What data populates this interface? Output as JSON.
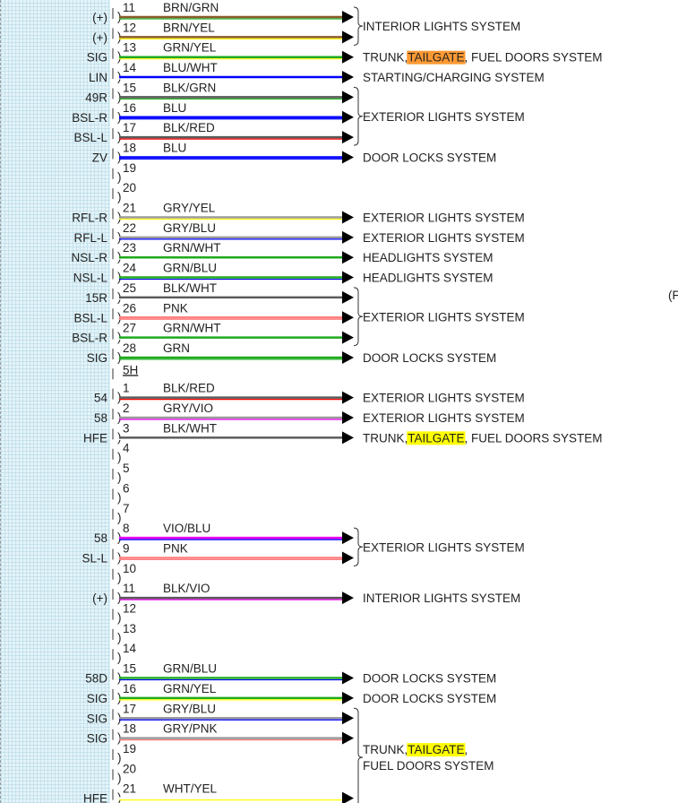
{
  "wire_colors": {
    "BRN": "#8b5a2b",
    "GRN": "#1faa1f",
    "YEL": "#ffff00",
    "BLU": "#0000ff",
    "WHT": "#ffffff",
    "BLK": "#5a5a5a",
    "RED": "#ff0000",
    "GRY": "#9a9a9a",
    "VIO": "#ee00ee",
    "PNK": "#ff8080"
  },
  "highlight_colors": {
    "orange": "#ff9933",
    "yellow": "#ffff00"
  },
  "connector_5h_label": "5H",
  "rows": [
    {
      "pin": "11",
      "signal": "(+)",
      "wire": "BRN/GRN",
      "system": ""
    },
    {
      "pin": "12",
      "signal": "(+)",
      "wire": "BRN/YEL",
      "system": ""
    },
    {
      "pin": "13",
      "signal": "SIG",
      "wire": "GRN/YEL",
      "system": [
        "TRUNK, ",
        "TAILGATE",
        ", FUEL DOORS SYSTEM"
      ],
      "hl": "orange"
    },
    {
      "pin": "14",
      "signal": "LIN",
      "wire": "BLU/WHT",
      "system": "STARTING/CHARGING SYSTEM"
    },
    {
      "pin": "15",
      "signal": "49R",
      "wire": "BLK/GRN",
      "system": ""
    },
    {
      "pin": "16",
      "signal": "BSL-R",
      "wire": "BLU",
      "system": ""
    },
    {
      "pin": "17",
      "signal": "BSL-L",
      "wire": "BLK/RED",
      "system": ""
    },
    {
      "pin": "18",
      "signal": "ZV",
      "wire": "BLU",
      "system": "DOOR LOCKS SYSTEM"
    },
    {
      "pin": "19",
      "signal": "",
      "wire": "",
      "system": ""
    },
    {
      "pin": "20",
      "signal": "",
      "wire": "",
      "system": ""
    },
    {
      "pin": "21",
      "signal": "RFL-R",
      "wire": "GRY/YEL",
      "system": "EXTERIOR LIGHTS SYSTEM"
    },
    {
      "pin": "22",
      "signal": "RFL-L",
      "wire": "GRY/BLU",
      "system": "EXTERIOR LIGHTS SYSTEM"
    },
    {
      "pin": "23",
      "signal": "NSL-R",
      "wire": "GRN/WHT",
      "system": "HEADLIGHTS SYSTEM"
    },
    {
      "pin": "24",
      "signal": "NSL-L",
      "wire": "GRN/BLU",
      "system": "HEADLIGHTS SYSTEM"
    },
    {
      "pin": "25",
      "signal": "15R",
      "wire": "BLK/WHT",
      "system": ""
    },
    {
      "pin": "26",
      "signal": "BSL-L",
      "wire": "PNK",
      "system": ""
    },
    {
      "pin": "27",
      "signal": "BSL-R",
      "wire": "GRN/WHT",
      "system": ""
    },
    {
      "pin": "28",
      "signal": "SIG",
      "wire": "GRN",
      "system": "DOOR LOCKS SYSTEM"
    },
    {
      "connector": true
    },
    {
      "pin": "1",
      "signal": "54",
      "wire": "BLK/RED",
      "system": "EXTERIOR LIGHTS SYSTEM"
    },
    {
      "pin": "2",
      "signal": "58",
      "wire": "GRY/VIO",
      "system": "EXTERIOR LIGHTS SYSTEM"
    },
    {
      "pin": "3",
      "signal": "HFE",
      "wire": "BLK/WHT",
      "system": [
        "TRUNK, ",
        "TAILGATE",
        ", FUEL DOORS SYSTEM"
      ],
      "hl": "yellow"
    },
    {
      "pin": "4",
      "signal": "",
      "wire": "",
      "system": ""
    },
    {
      "pin": "5",
      "signal": "",
      "wire": "",
      "system": ""
    },
    {
      "pin": "6",
      "signal": "",
      "wire": "",
      "system": ""
    },
    {
      "pin": "7",
      "signal": "",
      "wire": "",
      "system": ""
    },
    {
      "pin": "8",
      "signal": "58",
      "wire": "VIO/BLU",
      "system": ""
    },
    {
      "pin": "9",
      "signal": "SL-L",
      "wire": "PNK",
      "system": ""
    },
    {
      "pin": "10",
      "signal": "",
      "wire": "",
      "system": ""
    },
    {
      "pin": "11",
      "signal": "(+)",
      "wire": "BLK/VIO",
      "system": "INTERIOR LIGHTS SYSTEM"
    },
    {
      "pin": "12",
      "signal": "",
      "wire": "",
      "system": ""
    },
    {
      "pin": "13",
      "signal": "",
      "wire": "",
      "system": ""
    },
    {
      "pin": "14",
      "signal": "",
      "wire": "",
      "system": ""
    },
    {
      "pin": "15",
      "signal": "58D",
      "wire": "GRN/BLU",
      "system": "DOOR LOCKS SYSTEM"
    },
    {
      "pin": "16",
      "signal": "SIG",
      "wire": "GRN/YEL",
      "system": "DOOR LOCKS SYSTEM"
    },
    {
      "pin": "17",
      "signal": "SIG",
      "wire": "GRY/BLU",
      "system": ""
    },
    {
      "pin": "18",
      "signal": "SIG",
      "wire": "GRY/PNK",
      "system": ""
    },
    {
      "pin": "19",
      "signal": "",
      "wire": "",
      "system": ""
    },
    {
      "pin": "20",
      "signal": "",
      "wire": "",
      "system": ""
    },
    {
      "pin": "21",
      "signal": "HFE",
      "wire": "WHT/YEL",
      "system": ""
    }
  ],
  "groups": [
    {
      "from": 0,
      "to": 1,
      "label": [
        "INTERIOR LIGHTS SYSTEM"
      ]
    },
    {
      "from": 4,
      "to": 6,
      "label": [
        "EXTERIOR LIGHTS SYSTEM"
      ]
    },
    {
      "from": 14,
      "to": 16,
      "label": [
        "EXTERIOR LIGHTS SYSTEM"
      ]
    },
    {
      "from": 26,
      "to": 27,
      "label": [
        "EXTERIOR LIGHTS SYSTEM"
      ]
    },
    {
      "from": 35,
      "to": 40,
      "label": [
        [
          "TRUNK, ",
          "TAILGATE",
          ","
        ],
        [
          "FUEL DOORS SYSTEM"
        ]
      ],
      "hl": "yellow"
    }
  ],
  "offscreen_right_text": "(F"
}
